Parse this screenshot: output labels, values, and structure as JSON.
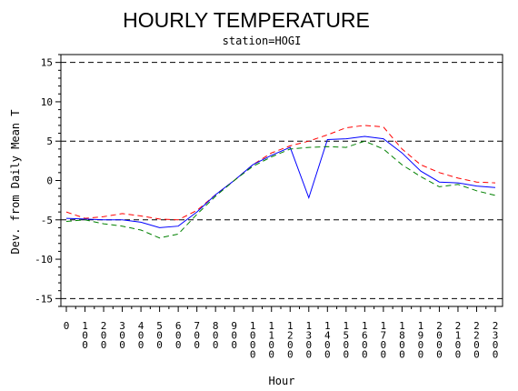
{
  "chart_data": {
    "type": "line",
    "title": "HOURLY TEMPERATURE",
    "subtitle": "station=HOGI",
    "xlabel": "Hour",
    "ylabel": "Dev. from Daily Mean T",
    "ylim": [
      -16,
      16
    ],
    "xlim": [
      0,
      2300
    ],
    "y_ticks": [
      "-15",
      "-10",
      "-5",
      "0",
      "5",
      "10",
      "15"
    ],
    "x_ticks": [
      "0",
      "100",
      "200",
      "300",
      "400",
      "500",
      "600",
      "700",
      "800",
      "900",
      "1000",
      "1100",
      "1200",
      "1300",
      "1400",
      "1500",
      "1600",
      "1700",
      "1800",
      "1900",
      "2000",
      "2100",
      "2200",
      "2300"
    ],
    "reference_lines": [
      -15,
      -5,
      5,
      15
    ],
    "grid": false,
    "legend": "none",
    "x": [
      0,
      100,
      200,
      300,
      400,
      500,
      600,
      700,
      800,
      900,
      1000,
      1100,
      1200,
      1300,
      1400,
      1500,
      1600,
      1700,
      1800,
      1900,
      2000,
      2100,
      2200,
      2300
    ],
    "series": [
      {
        "color": "#ff0000",
        "dash": "dashed",
        "values": [
          -4.0,
          -4.8,
          -4.6,
          -4.2,
          -4.5,
          -4.9,
          -5.0,
          -3.8,
          -1.8,
          0.0,
          2.0,
          3.5,
          4.4,
          5.0,
          5.8,
          6.7,
          7.0,
          6.8,
          4.0,
          2.0,
          1.0,
          0.3,
          -0.2,
          -0.3
        ]
      },
      {
        "color": "#0000ff",
        "dash": "solid",
        "values": [
          -4.8,
          -4.9,
          -5.0,
          -5.0,
          -5.3,
          -6.0,
          -5.8,
          -4.0,
          -1.8,
          0.0,
          2.0,
          3.2,
          4.2,
          -2.2,
          5.2,
          5.3,
          5.6,
          5.3,
          3.5,
          1.2,
          -0.2,
          -0.3,
          -0.7,
          -0.9
        ]
      },
      {
        "color": "#008000",
        "dash": "dashed",
        "values": [
          -5.2,
          -5.0,
          -5.5,
          -5.8,
          -6.3,
          -7.3,
          -6.8,
          -4.3,
          -2.0,
          0.0,
          1.8,
          3.0,
          4.0,
          4.2,
          4.3,
          4.2,
          5.0,
          4.0,
          2.0,
          0.5,
          -0.8,
          -0.5,
          -1.3,
          -1.9
        ]
      }
    ]
  }
}
